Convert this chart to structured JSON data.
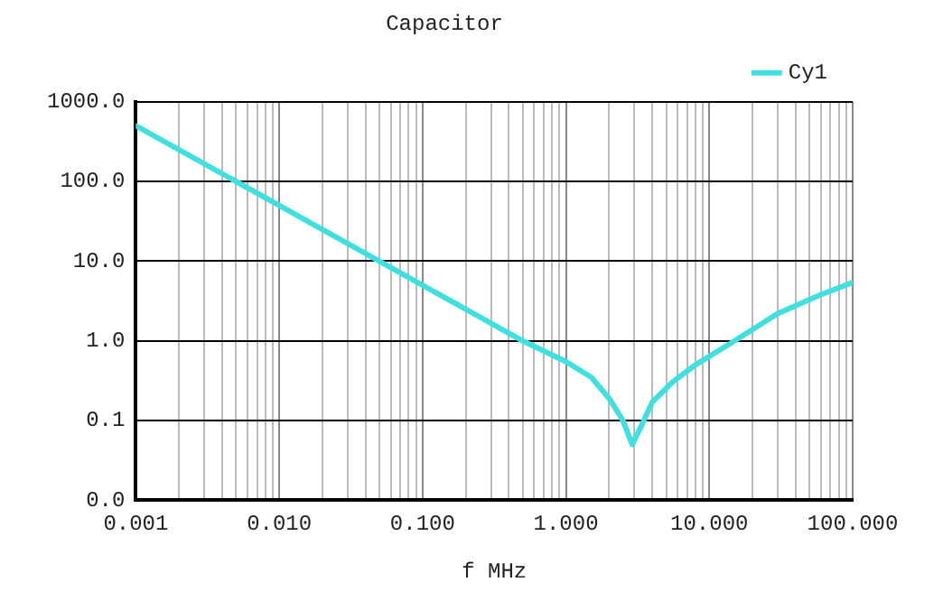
{
  "chart_data": {
    "type": "line",
    "title": "Capacitor",
    "xlabel": "f MHz",
    "x": [
      0.001,
      0.01,
      0.1,
      0.5,
      1.0,
      1.5,
      2.0,
      2.5,
      2.9,
      3.4,
      4.0,
      5.5,
      8,
      15,
      30,
      60,
      100
    ],
    "series": [
      {
        "name": "Cy1",
        "color": "#40e0e0",
        "values": [
          500,
          50,
          5,
          1.0,
          0.55,
          0.35,
          0.19,
          0.1,
          0.05,
          0.09,
          0.17,
          0.3,
          0.5,
          1.0,
          2.2,
          3.8,
          5.4
        ]
      }
    ],
    "log": "xy",
    "xlim": [
      0.001,
      100
    ],
    "ylim": [
      0.01,
      1000
    ],
    "xticks": [
      {
        "value": 0.001,
        "label": "0.001"
      },
      {
        "value": 0.002,
        "label": null
      },
      {
        "value": 0.003,
        "label": null
      },
      {
        "value": 0.004,
        "label": null
      },
      {
        "value": 0.005,
        "label": null
      },
      {
        "value": 0.006,
        "label": null
      },
      {
        "value": 0.007,
        "label": null
      },
      {
        "value": 0.008,
        "label": null
      },
      {
        "value": 0.009,
        "label": null
      },
      {
        "value": 0.01,
        "label": "0.010"
      },
      {
        "value": 0.02,
        "label": null
      },
      {
        "value": 0.03,
        "label": null
      },
      {
        "value": 0.04,
        "label": null
      },
      {
        "value": 0.05,
        "label": null
      },
      {
        "value": 0.06,
        "label": null
      },
      {
        "value": 0.07,
        "label": null
      },
      {
        "value": 0.08,
        "label": null
      },
      {
        "value": 0.09,
        "label": null
      },
      {
        "value": 0.1,
        "label": "0.100"
      },
      {
        "value": 0.2,
        "label": null
      },
      {
        "value": 0.3,
        "label": null
      },
      {
        "value": 0.4,
        "label": null
      },
      {
        "value": 0.5,
        "label": null
      },
      {
        "value": 0.6,
        "label": null
      },
      {
        "value": 0.7,
        "label": null
      },
      {
        "value": 0.8,
        "label": null
      },
      {
        "value": 0.9,
        "label": null
      },
      {
        "value": 1,
        "label": "1.000"
      },
      {
        "value": 2,
        "label": null
      },
      {
        "value": 3,
        "label": null
      },
      {
        "value": 4,
        "label": null
      },
      {
        "value": 5,
        "label": null
      },
      {
        "value": 6,
        "label": null
      },
      {
        "value": 7,
        "label": null
      },
      {
        "value": 8,
        "label": null
      },
      {
        "value": 9,
        "label": null
      },
      {
        "value": 10,
        "label": "10.000"
      },
      {
        "value": 20,
        "label": null
      },
      {
        "value": 30,
        "label": null
      },
      {
        "value": 40,
        "label": null
      },
      {
        "value": 50,
        "label": null
      },
      {
        "value": 60,
        "label": null
      },
      {
        "value": 70,
        "label": null
      },
      {
        "value": 80,
        "label": null
      },
      {
        "value": 90,
        "label": null
      },
      {
        "value": 100,
        "label": "100.000"
      }
    ],
    "yticks": [
      {
        "value": 0.01,
        "label": "0.0"
      },
      {
        "value": 0.1,
        "label": "0.1"
      },
      {
        "value": 1,
        "label": "1.0"
      },
      {
        "value": 10,
        "label": "10.0"
      },
      {
        "value": 100,
        "label": "100.0"
      },
      {
        "value": 1000,
        "label": "1000.0"
      }
    ],
    "grid": true,
    "legend": "top right",
    "marker": "none",
    "line_style": "solid"
  }
}
